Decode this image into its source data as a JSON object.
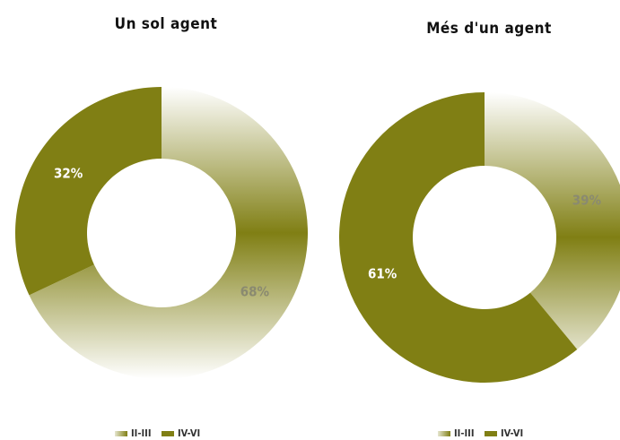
{
  "chart_data": [
    {
      "type": "pie",
      "title": "Un sol agent",
      "categories": [
        "II-III",
        "IV-VI"
      ],
      "values": [
        68,
        32
      ],
      "value_labels": [
        "68%",
        "32%"
      ],
      "colors": [
        "#807f14",
        "#807f14"
      ],
      "fills": [
        "gradient",
        "solid"
      ],
      "hole": true
    },
    {
      "type": "pie",
      "title": "Més d'un agent",
      "categories": [
        "II-III",
        "IV-VI"
      ],
      "values": [
        39,
        61
      ],
      "value_labels": [
        "39%",
        "61%"
      ],
      "colors": [
        "#807f14",
        "#807f14"
      ],
      "fills": [
        "gradient",
        "solid"
      ],
      "hole": true
    }
  ]
}
